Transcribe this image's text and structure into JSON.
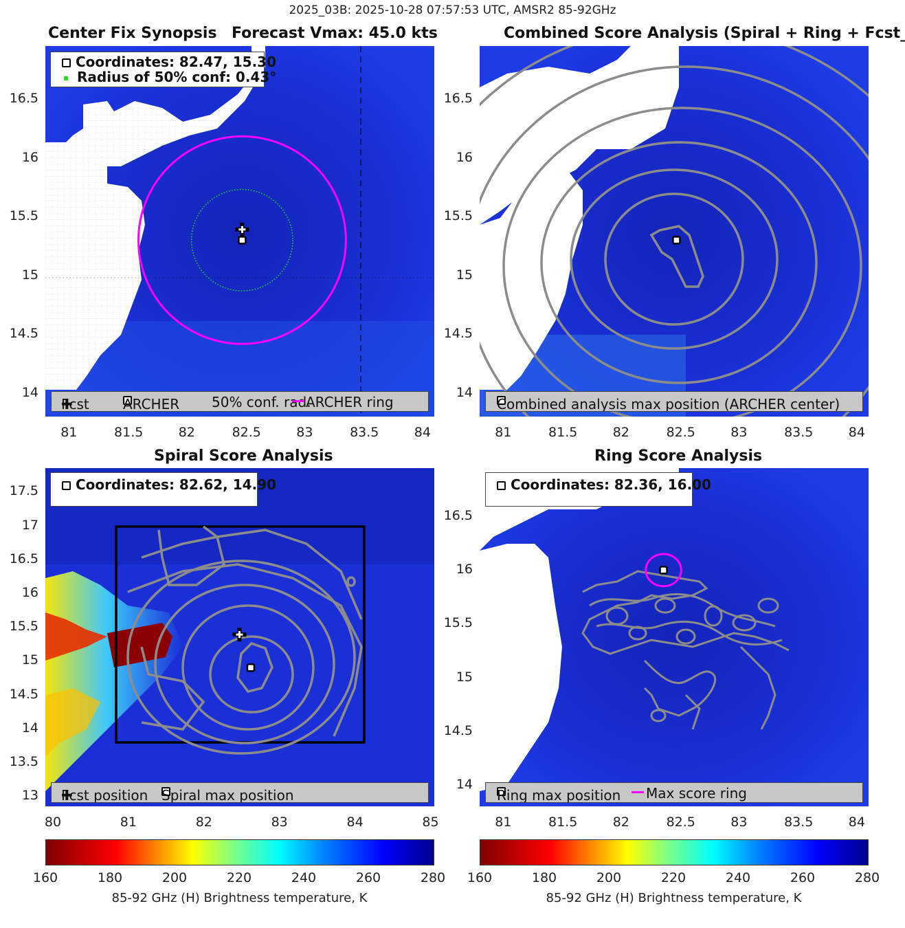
{
  "suptitle": "2025_03B: 2025-10-28 07:57:53 UTC, AMSR2 85-92GHz",
  "colors": {
    "magenta": "#ff00ff",
    "contour": "#8c8c8c",
    "background_blue": "#1a2fd8",
    "green_dots": "#22dd22"
  },
  "panels": {
    "synopsis": {
      "title_left": "Center Fix Synopsis",
      "title_right": "Forecast Vmax: 45.0 kts",
      "info_line1": "Coordinates: 82.47, 15.30",
      "info_line2": "Radius of 50% conf: 0.43°",
      "legend": {
        "fcst": "Fcst",
        "archer": "ARCHER",
        "conf": "50% conf. rad.",
        "ring": "ARCHER ring"
      },
      "xticks": [
        "81",
        "81.5",
        "82",
        "82.5",
        "83",
        "83.5",
        "84"
      ],
      "yticks": [
        "16.5",
        "16",
        "15.5",
        "15",
        "14.5",
        "14"
      ]
    },
    "combined": {
      "title": "Combined Score Analysis (Spiral + Ring + Fcst_Pe",
      "legend": "Combined analysis max position (ARCHER center)",
      "xticks": [
        "81",
        "81.5",
        "82",
        "82.5",
        "83",
        "83.5",
        "84"
      ],
      "yticks": [
        "16.5",
        "16",
        "15.5",
        "15",
        "14.5",
        "14"
      ]
    },
    "spiral": {
      "title": "Spiral Score Analysis",
      "info": "Coordinates: 82.62, 14.90",
      "legend": {
        "fcst": "Fcst position",
        "max": "Spiral max position"
      },
      "xticks": [
        "80",
        "81",
        "82",
        "83",
        "84",
        "85"
      ],
      "yticks": [
        "17.5",
        "17",
        "16.5",
        "16",
        "15.5",
        "15",
        "14.5",
        "14",
        "13.5",
        "13"
      ]
    },
    "ring": {
      "title": "Ring Score Analysis",
      "info": "Coordinates: 82.36, 16.00",
      "legend": {
        "max": "Ring max position",
        "ring": "Max score ring"
      },
      "xticks": [
        "81",
        "81.5",
        "82",
        "82.5",
        "83",
        "83.5",
        "84"
      ],
      "yticks": [
        "16.5",
        "16",
        "15.5",
        "15",
        "14.5",
        "14"
      ]
    }
  },
  "colorbars": [
    {
      "ticks": [
        "160",
        "180",
        "200",
        "220",
        "240",
        "260",
        "280"
      ],
      "label": "85-92 GHz (H) Brightness temperature, K"
    },
    {
      "ticks": [
        "160",
        "180",
        "200",
        "220",
        "240",
        "260",
        "280"
      ],
      "label": "85-92 GHz (H) Brightness temperature, K"
    }
  ],
  "chart_data": [
    {
      "type": "heatmap",
      "title": "Center Fix Synopsis",
      "xlim": [
        80.8,
        84.1
      ],
      "ylim": [
        13.8,
        16.95
      ],
      "fcst_position": [
        82.47,
        15.39
      ],
      "archer_center": [
        82.47,
        15.3
      ],
      "conf_radius_deg": 0.43,
      "archer_ring_radius_deg": 0.88
    },
    {
      "type": "heatmap",
      "title": "Combined Score Analysis",
      "xlim": [
        80.8,
        84.1
      ],
      "ylim": [
        13.8,
        16.95
      ],
      "max_position": [
        82.47,
        15.3
      ]
    },
    {
      "type": "heatmap",
      "title": "Spiral Score Analysis",
      "xlim": [
        79.9,
        85.05
      ],
      "ylim": [
        12.85,
        17.85
      ],
      "fcst_position": [
        82.47,
        15.39
      ],
      "max_position": [
        82.62,
        14.9
      ],
      "search_box": {
        "x": [
          80.85,
          84.15
        ],
        "y": [
          13.8,
          17.0
        ]
      }
    },
    {
      "type": "heatmap",
      "title": "Ring Score Analysis",
      "xlim": [
        80.8,
        84.1
      ],
      "ylim": [
        13.8,
        16.95
      ],
      "max_position": [
        82.36,
        16.0
      ],
      "ring_radius_deg": 0.15
    }
  ]
}
